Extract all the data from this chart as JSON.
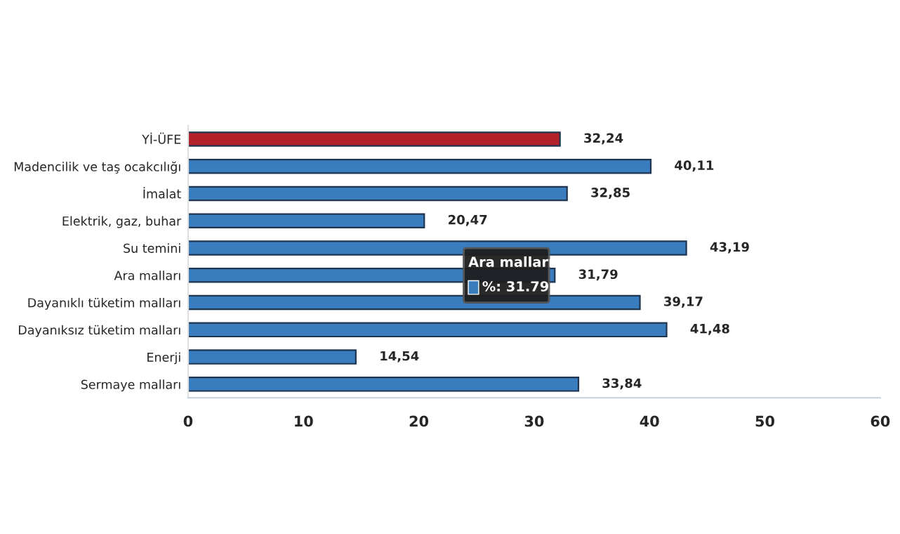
{
  "chart_data": {
    "type": "bar",
    "orientation": "horizontal",
    "categories": [
      "Yİ-ÜFE",
      "Madencilik ve taş ocakcılığı",
      "İmalat",
      "Elektrik, gaz, buhar",
      "Su temini",
      "Ara malları",
      "Dayanıklı tüketim malları",
      "Dayanıksız tüketim malları",
      "Enerji",
      "Sermaye malları"
    ],
    "values": [
      32.24,
      40.11,
      32.85,
      20.47,
      43.19,
      31.79,
      39.17,
      41.48,
      14.54,
      33.84
    ],
    "colors": [
      "#b5212b",
      "#3a7dbf",
      "#3a7dbf",
      "#3a7dbf",
      "#3a7dbf",
      "#3a7dbf",
      "#3a7dbf",
      "#3a7dbf",
      "#3a7dbf",
      "#3a7dbf"
    ],
    "value_labels": [
      "32,24",
      "40,11",
      "32,85",
      "20,47",
      "43,19",
      "31,79",
      "39,17",
      "41,48",
      "14,54",
      "33,84"
    ],
    "xlim": [
      0,
      60
    ],
    "xticks": [
      0,
      10,
      20,
      30,
      40,
      50,
      60
    ],
    "grid": false,
    "annotations": [
      {
        "text": "Ara malları",
        "x": 31.79,
        "y": "Ara malları"
      },
      {
        "text": "%: 31.79",
        "x": 31.79,
        "y": "Ara malları"
      }
    ]
  }
}
